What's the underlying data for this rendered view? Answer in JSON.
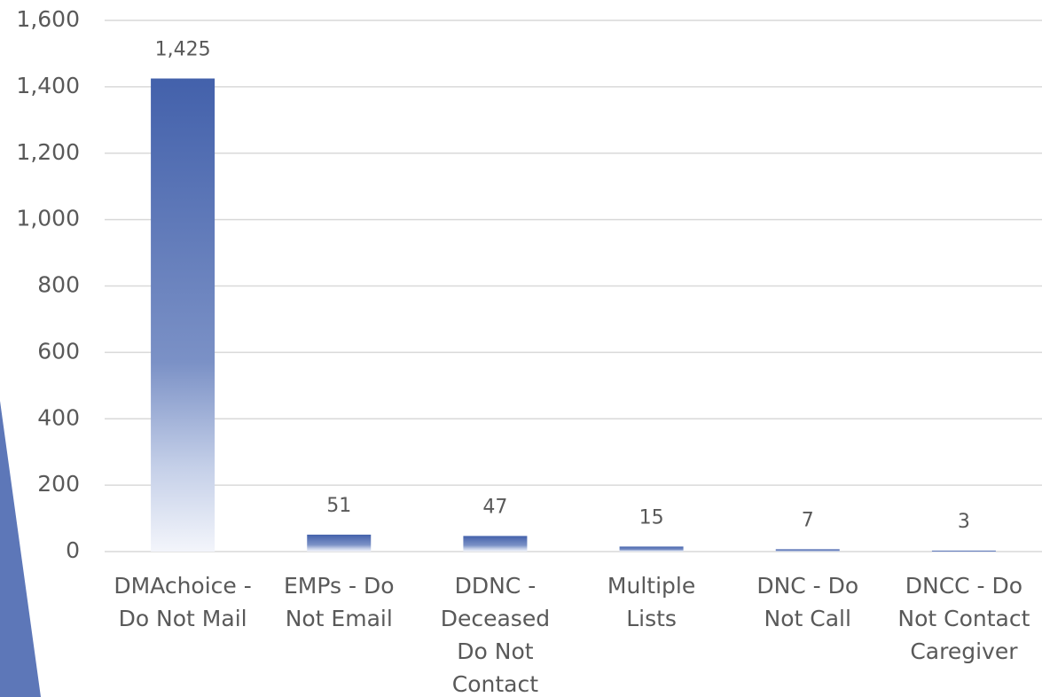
{
  "chart_data": {
    "type": "bar",
    "categories": [
      "DMAchoice -\nDo Not Mail",
      "EMPs - Do\nNot Email",
      "DDNC -\nDeceased\nDo Not\nContact",
      "Multiple\nLists",
      "DNC - Do\nNot Call",
      "DNCC - Do\nNot Contact\nCaregiver"
    ],
    "values": [
      1425,
      51,
      47,
      15,
      7,
      3
    ],
    "value_labels": [
      "1,425",
      "51",
      "47",
      "15",
      "7",
      "3"
    ],
    "color": "#4361ab",
    "ylim": [
      0,
      1600
    ],
    "yticks": [
      0,
      200,
      400,
      600,
      800,
      {
        "value": 1000,
        "label": "1,000"
      },
      {
        "value": 1200,
        "label": "1,200"
      },
      {
        "value": 1400,
        "label": "1,400"
      },
      {
        "value": 1600,
        "label": "1,600"
      }
    ],
    "grid": true
  }
}
